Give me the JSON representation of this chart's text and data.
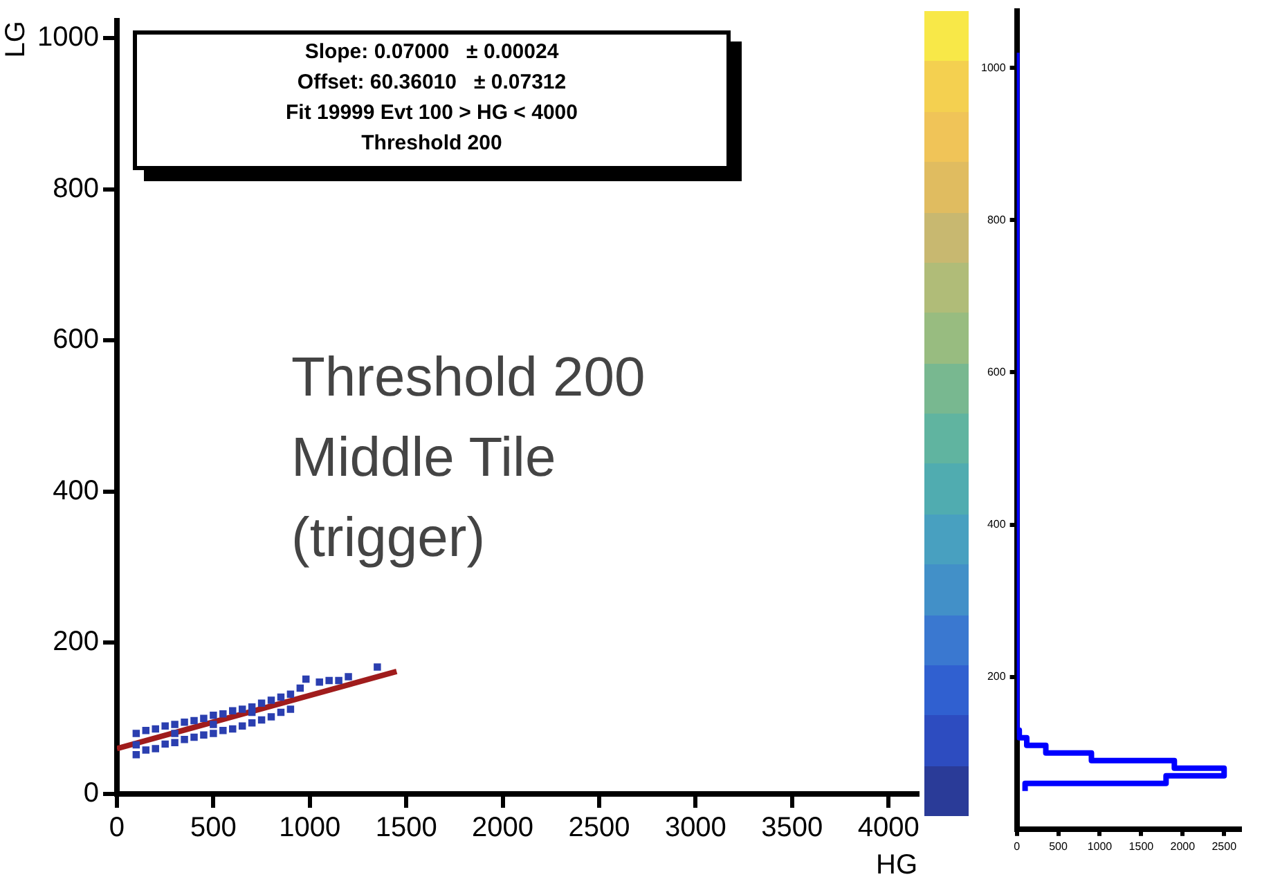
{
  "chart_data": [
    {
      "type": "scatter",
      "xlabel": "HG",
      "ylabel": "LG",
      "xlim": [
        0,
        4150
      ],
      "ylim": [
        0,
        1023
      ],
      "xticks": [
        0,
        500,
        1000,
        1500,
        2000,
        2500,
        3000,
        3500,
        4000
      ],
      "yticks": [
        0,
        200,
        400,
        600,
        800,
        1000
      ],
      "grid": false,
      "annotations": [
        "Slope: 0.07000   ± 0.00024\nOffset: 60.36010   ± 0.07312\nFit 19999 Evt 100 > HG < 4000\nThreshold 200",
        "Threshold 200\nMiddle Tile\n(trigger)"
      ],
      "series": [
        {
          "type": "scatter",
          "color": "#2b3fb0",
          "marker": "square",
          "x": [
            100,
            100,
            100,
            150,
            150,
            200,
            200,
            250,
            250,
            300,
            300,
            350,
            350,
            400,
            400,
            450,
            450,
            500,
            500,
            550,
            550,
            600,
            600,
            650,
            650,
            700,
            700,
            750,
            750,
            800,
            800,
            850,
            850,
            900,
            900,
            950,
            980,
            1050,
            1100,
            1150,
            1200,
            1350,
            300,
            500,
            700
          ],
          "values": [
            52,
            65,
            80,
            58,
            84,
            60,
            86,
            66,
            90,
            68,
            92,
            72,
            95,
            75,
            97,
            78,
            100,
            80,
            104,
            84,
            106,
            86,
            110,
            90,
            112,
            94,
            115,
            98,
            120,
            102,
            124,
            108,
            128,
            112,
            132,
            140,
            152,
            148,
            150,
            150,
            155,
            168,
            80,
            92,
            108
          ]
        },
        {
          "type": "line",
          "color": "#a01c1c",
          "x": [
            0,
            1450
          ],
          "values": [
            60,
            162
          ]
        }
      ]
    },
    {
      "type": "histogram",
      "orientation": "horizontal",
      "color": "#0000ff",
      "bins": [
        50,
        60,
        70,
        80,
        90,
        100,
        110,
        120,
        130,
        1020
      ],
      "values": [
        100,
        1800,
        2500,
        1900,
        900,
        350,
        120,
        30,
        0
      ],
      "xlim": [
        0,
        2690
      ],
      "ylim": [
        0,
        1075
      ],
      "xticks": [
        0,
        500,
        1000,
        1500,
        2000,
        2500
      ],
      "yticks": [
        200,
        400,
        600,
        800,
        1000
      ],
      "grid": false
    }
  ]
}
